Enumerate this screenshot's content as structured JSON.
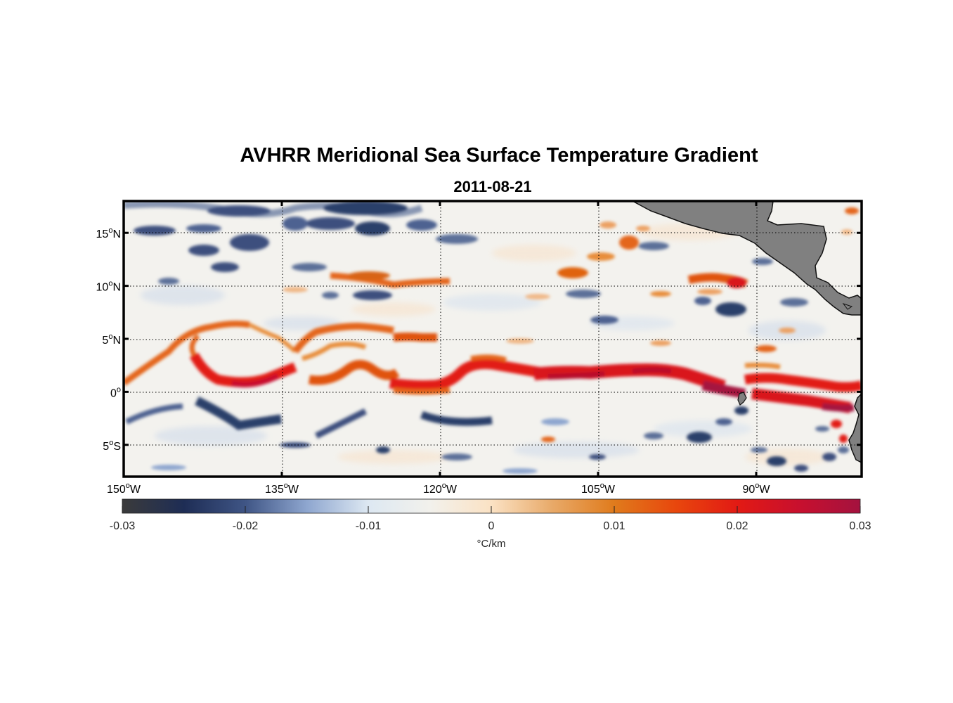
{
  "title": "AVHRR Meridional Sea Surface Temperature Gradient",
  "date": "2011-08-21",
  "map": {
    "lon_range": [
      -150,
      -80
    ],
    "lat_range": [
      -8,
      18
    ],
    "lat_ticks": [
      {
        "lat": 15,
        "deg": "15",
        "hem": "N"
      },
      {
        "lat": 10,
        "deg": "10",
        "hem": "N"
      },
      {
        "lat": 5,
        "deg": "5",
        "hem": "N"
      },
      {
        "lat": 0,
        "deg": "0",
        "hem": ""
      },
      {
        "lat": -5,
        "deg": "5",
        "hem": "S"
      }
    ],
    "lon_ticks": [
      {
        "lon": -150,
        "deg": "150",
        "hem": "W"
      },
      {
        "lon": -135,
        "deg": "135",
        "hem": "W"
      },
      {
        "lon": -120,
        "deg": "120",
        "hem": "W"
      },
      {
        "lon": -105,
        "deg": "105",
        "hem": "W"
      },
      {
        "lon": -90,
        "deg": "90",
        "hem": "W"
      }
    ],
    "features": [
      {
        "type": "warm_band",
        "lat": 2.0,
        "lon_start": -150,
        "lon_end": -80
      },
      {
        "type": "cold_band",
        "lat": -2.5,
        "lon_start": -150,
        "lon_end": -80
      },
      {
        "type": "cold_band",
        "lat": 15.5,
        "lon_start": -150,
        "lon_end": -118
      },
      {
        "type": "warm_band",
        "lat": 10.5,
        "lon_start": -132,
        "lon_end": -84
      }
    ]
  },
  "colorbar": {
    "ticks": [
      "-0.03",
      "-0.02",
      "-0.01",
      "0",
      "0.01",
      "0.02",
      "0.03"
    ],
    "tick_values": [
      -0.03,
      -0.02,
      -0.01,
      0,
      0.01,
      0.02,
      0.03
    ],
    "unit": "°C/km",
    "colors": [
      "#3b3b3b",
      "#1e2d55",
      "#3f5585",
      "#8ea6cf",
      "#dde8f2",
      "#f2f1ec",
      "#fbe2c4",
      "#e8a968",
      "#e07b1c",
      "#e8470d",
      "#e21a14",
      "#c8102e",
      "#a4123f"
    ]
  },
  "colors": {
    "land": "#808080",
    "ocean_neutral": "#f3f2ee",
    "warm_strong": "#d9181e",
    "warm_mid": "#e4661a",
    "cold_strong": "#2c3f6b",
    "cold_mid": "#8ea6cf"
  }
}
